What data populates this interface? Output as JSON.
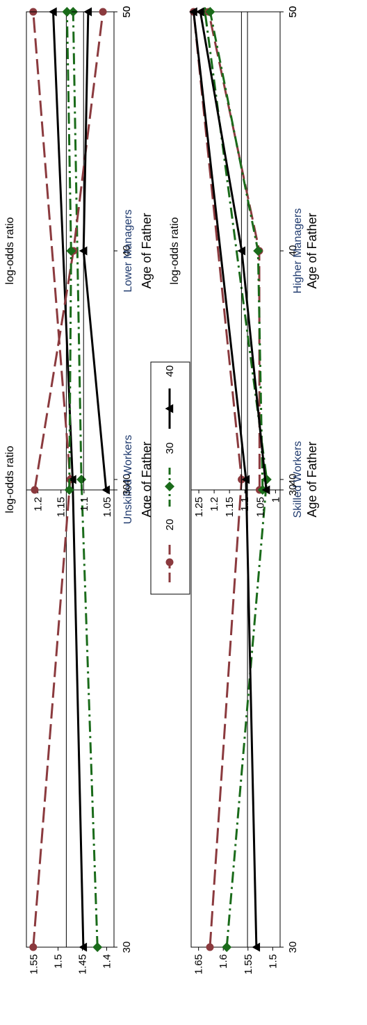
{
  "figure": {
    "rotation": "90deg counter-clockwise (page is landscape rotated)"
  },
  "legend": {
    "placement": "bottom",
    "items": [
      {
        "label": "20",
        "color": "#8b3a3e",
        "marker": "circle",
        "dash": "long-dash"
      },
      {
        "label": "30",
        "color": "#1a6b1a",
        "marker": "diamond",
        "dash": "dash-dot"
      },
      {
        "label": "40",
        "color": "#000000",
        "marker": "triangle",
        "dash": "solid"
      }
    ]
  },
  "chart_data": [
    {
      "type": "line",
      "title": "Unskilled Workers",
      "xlabel": "Age of Father",
      "ylabel": "log-odds ratio",
      "x": [
        30,
        40,
        50
      ],
      "xticks": [
        "30",
        "40",
        "50"
      ],
      "yticks": [
        "1.4",
        "1.45",
        "1.5",
        "1.55"
      ],
      "ylim": [
        1.385,
        1.565
      ],
      "reference_line": 1.483,
      "series": [
        {
          "name": "20",
          "values": [
            1.551,
            1.475,
            1.551
          ]
        },
        {
          "name": "30",
          "values": [
            1.419,
            1.452,
            1.469
          ]
        },
        {
          "name": "40",
          "values": [
            1.448,
            1.47,
            1.51
          ]
        }
      ]
    },
    {
      "type": "line",
      "title": "Skilled Workers",
      "xlabel": "Age of Father",
      "ylabel": "log-odds ratio",
      "x": [
        30,
        40,
        50
      ],
      "xticks": [
        "30",
        "40",
        "50"
      ],
      "yticks": [
        "1.5",
        "1.55",
        "1.6",
        "1.65"
      ],
      "ylim": [
        1.485,
        1.665
      ],
      "reference_line": 1.551,
      "series": [
        {
          "name": "20",
          "values": [
            1.627,
            1.563,
            1.66
          ]
        },
        {
          "name": "30",
          "values": [
            1.593,
            1.512,
            1.637
          ]
        },
        {
          "name": "40",
          "values": [
            1.533,
            1.554,
            1.66
          ]
        }
      ]
    },
    {
      "type": "line",
      "title": "Lower Managers",
      "xlabel": "Age of Father",
      "ylabel": "log-odds ratio",
      "x": [
        30,
        40,
        50
      ],
      "xticks": [
        "30",
        "40",
        "50"
      ],
      "yticks": [
        "1.05",
        "1.1",
        "1.15",
        "1.2"
      ],
      "ylim": [
        1.035,
        1.225
      ],
      "reference_line": 1.101,
      "series": [
        {
          "name": "20",
          "values": [
            1.207,
            1.123,
            1.059
          ]
        },
        {
          "name": "30",
          "values": [
            1.132,
            1.128,
            1.137
          ]
        },
        {
          "name": "40",
          "values": [
            1.052,
            1.101,
            1.091
          ]
        }
      ]
    },
    {
      "type": "line",
      "title": "Higher Managers",
      "xlabel": "Age of Father",
      "ylabel": "log-odds ratio",
      "x": [
        30,
        40,
        50
      ],
      "xticks": [
        "30",
        "40",
        "50"
      ],
      "yticks": [
        "1",
        "1.05",
        "1.1",
        "1.15",
        "1.2",
        "1.25"
      ],
      "ylim": [
        0.985,
        1.275
      ],
      "reference_line": 1.111,
      "series": [
        {
          "name": "20",
          "values": [
            1.052,
            1.053,
            1.218
          ]
        },
        {
          "name": "30",
          "values": [
            1.042,
            1.057,
            1.213
          ]
        },
        {
          "name": "40",
          "values": [
            1.03,
            1.11,
            1.245
          ]
        }
      ]
    }
  ]
}
